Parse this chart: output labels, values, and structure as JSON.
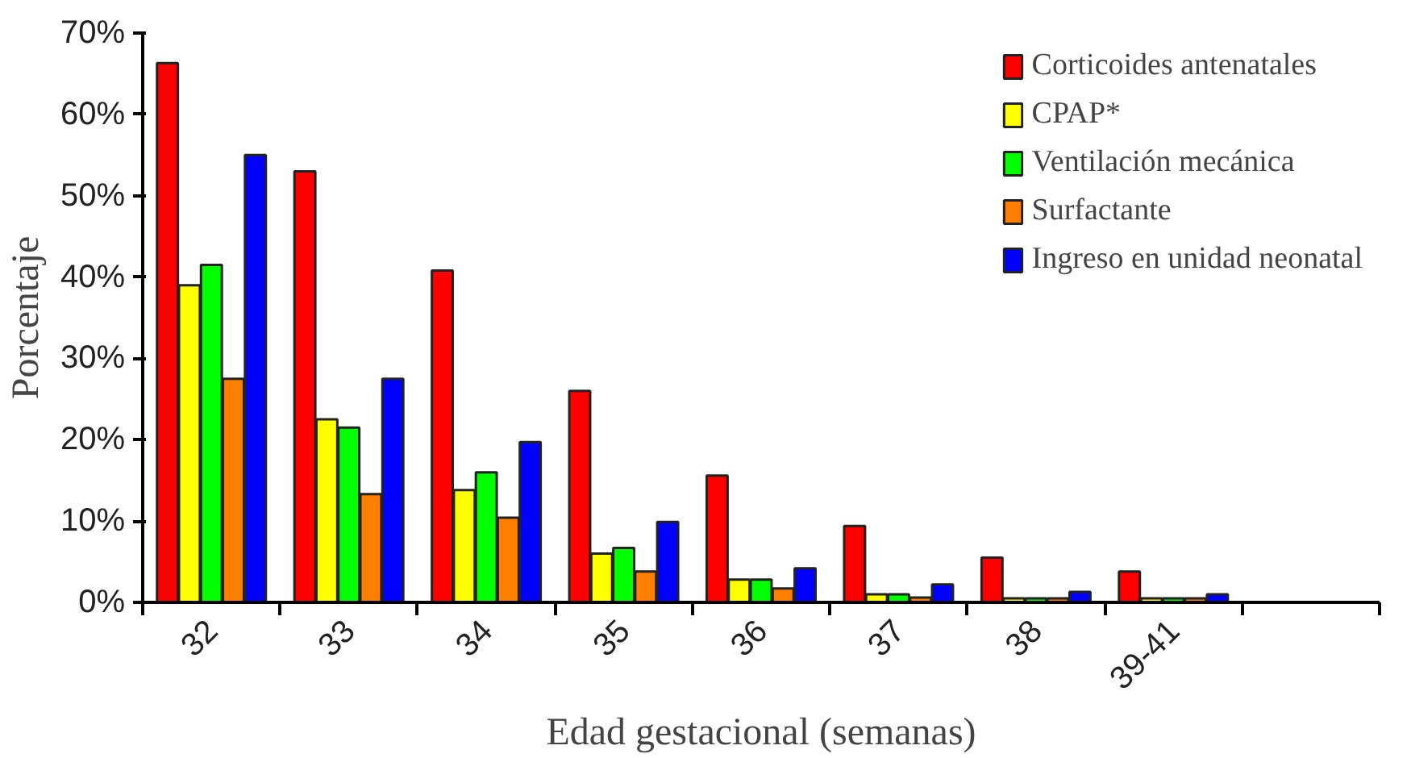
{
  "chart_data": {
    "type": "bar",
    "xlabel": "Edad gestacional (semanas)",
    "ylabel": "Porcentaje",
    "categories": [
      "32",
      "33",
      "34",
      "35",
      "36",
      "37",
      "38",
      "39-41",
      null
    ],
    "series": [
      {
        "name": "Corticoides antenatales",
        "color": "#ff0000",
        "values": [
          66.3,
          53,
          40.8,
          26,
          15.6,
          9.4,
          5.5,
          3.8,
          null
        ]
      },
      {
        "name": "CPAP*",
        "color": "#ffff00",
        "values": [
          39,
          22.5,
          13.8,
          6,
          2.8,
          1.0,
          0.5,
          0.5,
          null
        ]
      },
      {
        "name": "Ventilación mecánica",
        "color": "#00ff00",
        "values": [
          41.5,
          21.5,
          16,
          6.7,
          2.8,
          1.0,
          0.5,
          0.5,
          null
        ]
      },
      {
        "name": "Surfactante",
        "color": "#ff8000",
        "values": [
          27.5,
          13.3,
          10.4,
          3.8,
          1.7,
          0.6,
          0.5,
          0.5,
          null
        ]
      },
      {
        "name": "Ingreso en unidad neonatal",
        "color": "#0000ff",
        "values": [
          55,
          27.5,
          19.7,
          9.9,
          4.2,
          2.2,
          1.3,
          1.0,
          null
        ]
      }
    ],
    "ylim": [
      0,
      70
    ],
    "yticks": [
      {
        "value": 0,
        "label": "0%"
      },
      {
        "value": 10,
        "label": "10%"
      },
      {
        "value": 20,
        "label": "20%"
      },
      {
        "value": 30,
        "label": "30%"
      },
      {
        "value": 40,
        "label": "40%"
      },
      {
        "value": 50,
        "label": "50%"
      },
      {
        "value": 60,
        "label": "60%"
      },
      {
        "value": 70,
        "label": "70%"
      }
    ],
    "legend": "top right",
    "grid": false
  }
}
